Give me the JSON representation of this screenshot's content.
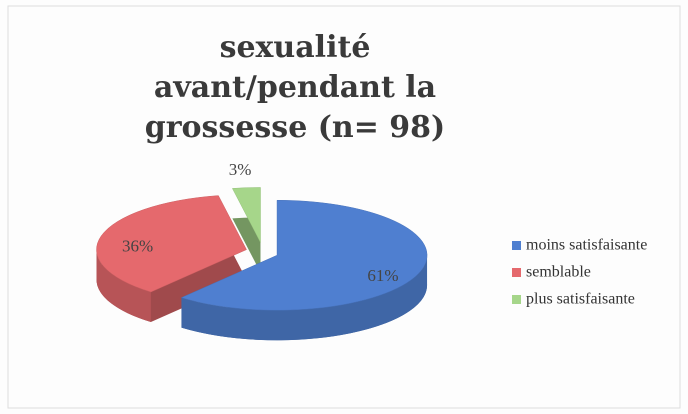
{
  "chart_data": {
    "type": "pie",
    "title": "sexualité avant/pendant la grossesse (n= 98)",
    "categories": [
      "moins satisfaisante",
      "semblable",
      "plus satisfaisante"
    ],
    "values": [
      61,
      36,
      3
    ],
    "value_labels": [
      "61%",
      "36%",
      "3%"
    ],
    "colors": [
      "#4f7fd0",
      "#e5696d",
      "#a6d68a"
    ],
    "legend": "right"
  }
}
